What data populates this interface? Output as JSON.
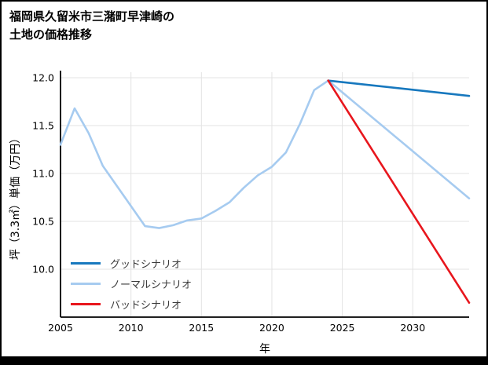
{
  "title": {
    "line1": "福岡県久留米市三潴町早津崎の",
    "line2": "土地の価格推移"
  },
  "chart_data": {
    "type": "line",
    "title": "福岡県久留米市三潴町早津崎の土地の価格推移",
    "xlabel": "年",
    "ylabel": "坪（3.3㎡）単価（万円）",
    "xlim": [
      2005,
      2034
    ],
    "ylim": [
      9.5,
      12.0
    ],
    "x_ticks": [
      2005,
      2010,
      2015,
      2020,
      2025,
      2030
    ],
    "y_ticks": [
      10.0,
      10.5,
      11.0,
      11.5,
      12.0
    ],
    "grid": "on",
    "legend_position": "lower-left-inside",
    "series": [
      {
        "name": "グッドシナリオ",
        "color": "#1778be",
        "width": 2.6,
        "points": [
          [
            2024,
            11.97
          ],
          [
            2034,
            11.81
          ]
        ]
      },
      {
        "name": "ノーマルシナリオ",
        "color": "#a6cbf0",
        "width": 2.6,
        "points": [
          [
            2005,
            11.3
          ],
          [
            2006,
            11.68
          ],
          [
            2007,
            11.42
          ],
          [
            2008,
            11.08
          ],
          [
            2009,
            10.87
          ],
          [
            2010,
            10.66
          ],
          [
            2011,
            10.45
          ],
          [
            2012,
            10.43
          ],
          [
            2013,
            10.46
          ],
          [
            2014,
            10.51
          ],
          [
            2015,
            10.53
          ],
          [
            2016,
            10.61
          ],
          [
            2017,
            10.7
          ],
          [
            2018,
            10.85
          ],
          [
            2019,
            10.98
          ],
          [
            2020,
            11.07
          ],
          [
            2021,
            11.22
          ],
          [
            2022,
            11.52
          ],
          [
            2023,
            11.87
          ],
          [
            2024,
            11.97
          ],
          [
            2034,
            10.74
          ]
        ]
      },
      {
        "name": "バッドシナリオ",
        "color": "#e8161d",
        "width": 2.6,
        "points": [
          [
            2024,
            11.97
          ],
          [
            2034,
            9.65
          ]
        ]
      }
    ],
    "colors": {
      "axis": "#000000",
      "grid": "#e3e3e3",
      "tick_text": "#000000"
    }
  }
}
